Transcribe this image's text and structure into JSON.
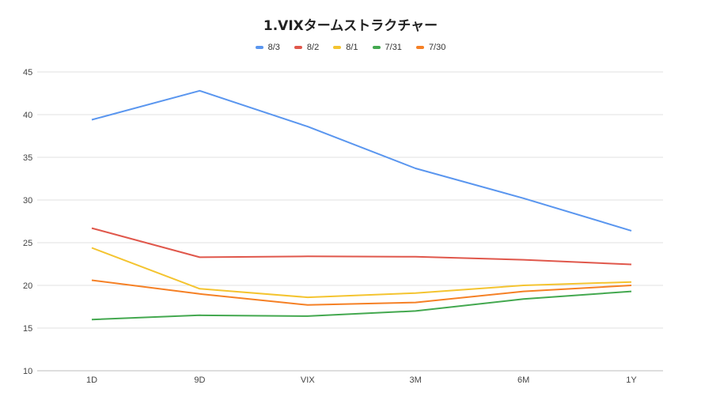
{
  "chart_data": {
    "type": "line",
    "title": "1.VIXタームストラクチャー",
    "categories": [
      "1D",
      "9D",
      "VIX",
      "3M",
      "6M",
      "1Y"
    ],
    "ylim": [
      10,
      45
    ],
    "yticks": [
      10,
      15,
      20,
      25,
      30,
      35,
      40,
      45
    ],
    "grid": true,
    "legend_position": "top",
    "series": [
      {
        "name": "8/3",
        "color": "#5a96ef",
        "values": [
          39.4,
          42.8,
          38.6,
          33.7,
          30.2,
          26.4
        ]
      },
      {
        "name": "8/2",
        "color": "#e0574b",
        "values": [
          26.7,
          23.3,
          23.4,
          23.35,
          23.0,
          22.45
        ]
      },
      {
        "name": "8/1",
        "color": "#f4c430",
        "values": [
          24.4,
          19.6,
          18.6,
          19.1,
          20.0,
          20.4
        ]
      },
      {
        "name": "7/31",
        "color": "#43a84f",
        "values": [
          16.0,
          16.5,
          16.4,
          17.0,
          18.4,
          19.3
        ]
      },
      {
        "name": "7/30",
        "color": "#f58025",
        "values": [
          20.6,
          19.0,
          17.7,
          18.0,
          19.3,
          20.0
        ]
      }
    ]
  }
}
